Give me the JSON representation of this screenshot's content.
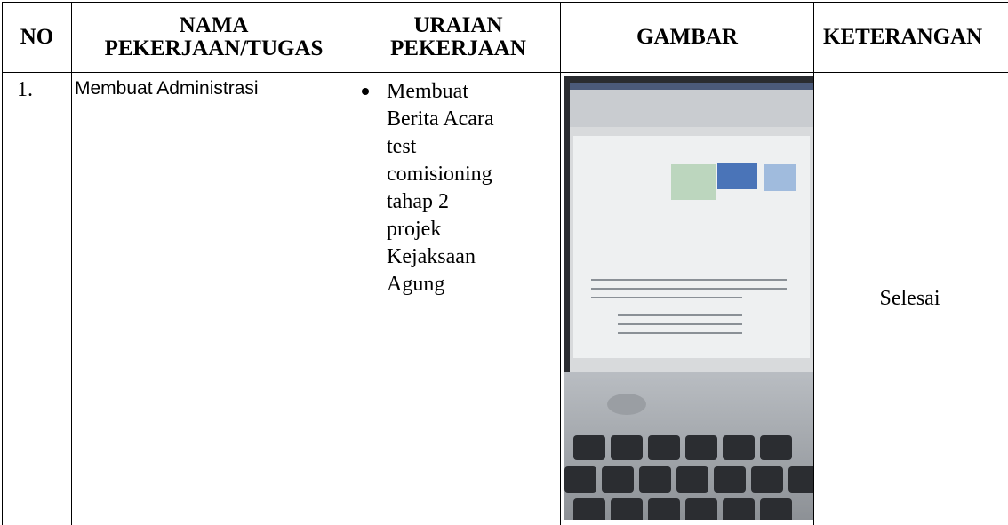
{
  "table": {
    "header": [
      "NO",
      "NAMA PEKERJAAN/TUGAS",
      "URAIAN PEKERJAAN",
      "GAMBAR",
      "KETERANGAN"
    ],
    "rows": [
      {
        "no": "1.",
        "nama": "Membuat Administrasi",
        "uraian": [
          "Membuat Berita Acara test comisioning tahap 2 projek Kejaksaan Agung"
        ],
        "keterangan": "Selesai"
      }
    ]
  }
}
